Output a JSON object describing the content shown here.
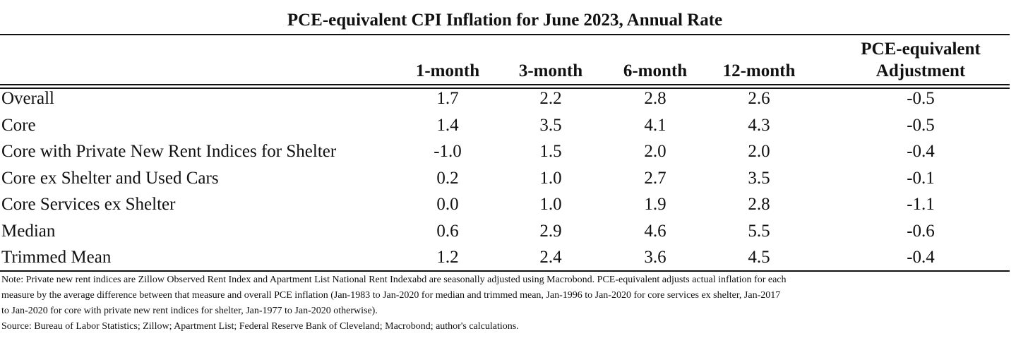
{
  "chart_data": {
    "type": "table",
    "title": "PCE-equivalent CPI Inflation for June 2023, Annual Rate",
    "columns": [
      "1-month",
      "3-month",
      "6-month",
      "12-month",
      "PCE-equivalent Adjustment"
    ],
    "column_headers": [
      {
        "line1": "",
        "line2": "1-month"
      },
      {
        "line1": "",
        "line2": "3-month"
      },
      {
        "line1": "",
        "line2": "6-month"
      },
      {
        "line1": "",
        "line2": "12-month"
      },
      {
        "line1": "PCE-equivalent",
        "line2": "Adjustment"
      }
    ],
    "rows": [
      {
        "label": "Overall",
        "values": [
          "1.7",
          "2.2",
          "2.8",
          "2.6",
          "-0.5"
        ]
      },
      {
        "label": "Core",
        "values": [
          "1.4",
          "3.5",
          "4.1",
          "4.3",
          "-0.5"
        ]
      },
      {
        "label": "Core with Private New Rent Indices for Shelter",
        "values": [
          "-1.0",
          "1.5",
          "2.0",
          "2.0",
          "-0.4"
        ]
      },
      {
        "label": "Core ex Shelter and Used Cars",
        "values": [
          "0.2",
          "1.0",
          "2.7",
          "3.5",
          "-0.1"
        ]
      },
      {
        "label": "Core Services ex Shelter",
        "values": [
          "0.0",
          "1.0",
          "1.9",
          "2.8",
          "-1.1"
        ]
      },
      {
        "label": "Median",
        "values": [
          "0.6",
          "2.9",
          "4.6",
          "5.5",
          "-0.6"
        ]
      },
      {
        "label": "Trimmed Mean",
        "values": [
          "1.2",
          "2.4",
          "3.6",
          "4.5",
          "-0.4"
        ]
      }
    ],
    "notes": [
      "Note: Private new rent indices are Zillow Observed Rent Index and Apartment List National Rent Indexabd are seasonally adjusted using Macrobond. PCE-equivalent adjusts actual inflation for each",
      "measure by the average difference between that measure and overall PCE inflation (Jan-1983 to Jan-2020 for median and trimmed mean, Jan-1996 to Jan-2020 for core services ex shelter, Jan-2017",
      "to Jan-2020 for core with private new rent indices for shelter, Jan-1977 to Jan-2020 otherwise).",
      "Source: Bureau of Labor Statistics; Zillow; Apartment List; Federal Reserve Bank of Cleveland; Macrobond; author's calculations."
    ]
  }
}
